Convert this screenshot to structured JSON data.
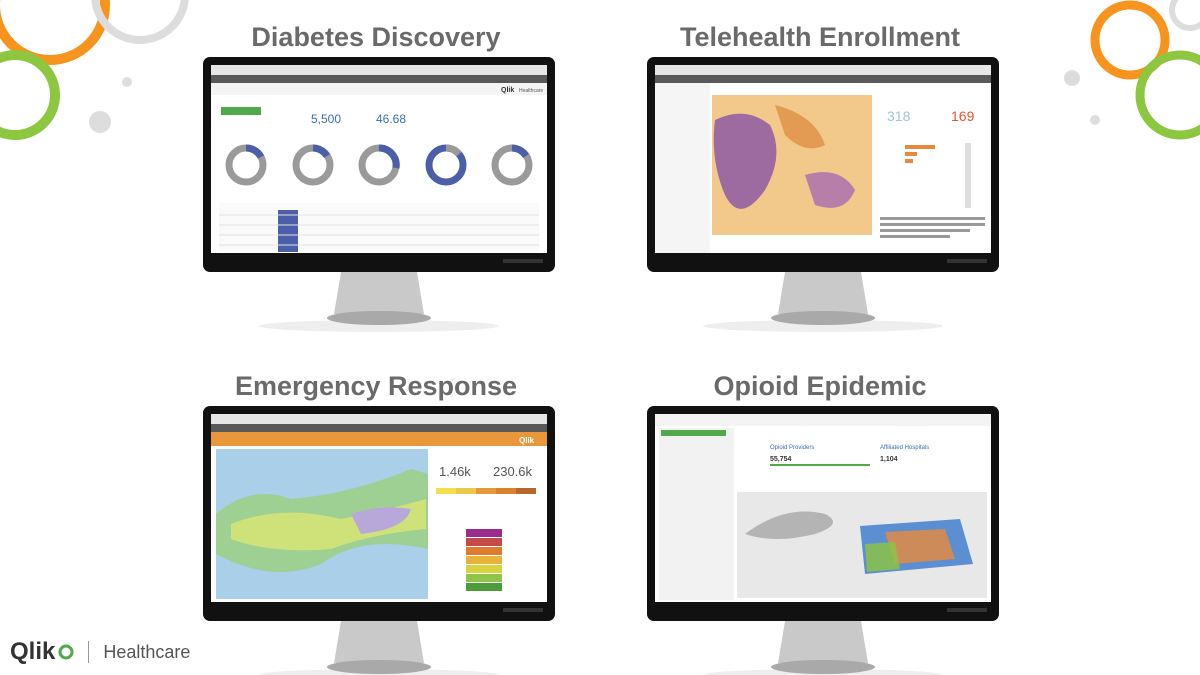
{
  "panels": [
    {
      "title": "Diabetes Discovery",
      "screen": {
        "brand": "Qlik",
        "app": "Healthcare",
        "kpis": [
          "5,500",
          "46.68"
        ]
      }
    },
    {
      "title": "Telehealth Enrollment",
      "screen": {
        "kpis": [
          "318",
          "169"
        ]
      }
    },
    {
      "title": "Emergency Response",
      "screen": {
        "brand": "Qlik",
        "kpis": [
          "1.46k",
          "230.6k"
        ]
      }
    },
    {
      "title": "Opioid Epidemic",
      "screen": {
        "labels": [
          "Opioid Providers",
          "Affiliated Hospitals"
        ],
        "kpis": [
          "55,754",
          "1,104"
        ]
      }
    }
  ],
  "footer": {
    "brand": "Qlik",
    "product": "Healthcare"
  }
}
